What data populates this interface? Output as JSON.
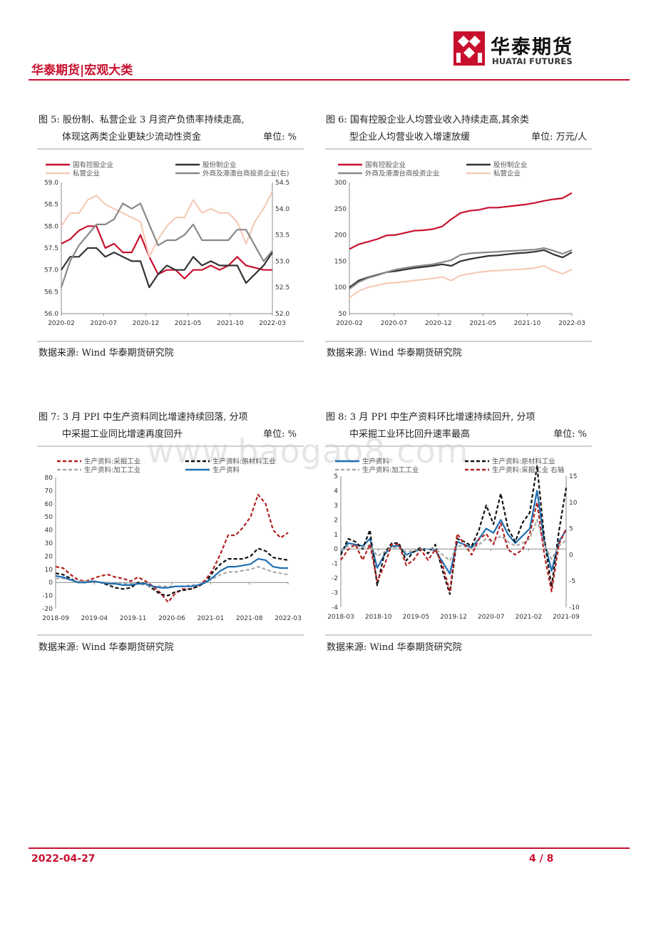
{
  "header": {
    "section_title": "华泰期货|宏观大类",
    "logo_cn": "华泰期货",
    "logo_en": "HUATAI FUTURES",
    "brand_color": "#c8102e"
  },
  "watermark": "www.baogao8.com",
  "footer": {
    "date": "2022-04-27",
    "page": "4 / 8"
  },
  "figures": [
    {
      "caption_line1": "图 5:      股份制、私营企业 3 月资产负债率持续走高,",
      "caption_line2": "体现这两类企业更缺少流动性资金",
      "unit": "单位: %",
      "source": "数据来源: Wind  华泰期货研究院"
    },
    {
      "caption_line1": "图 6:      国有控股企业人均营业收入持续走高,其余类",
      "caption_line2": "型企业人均营业收入增速放缓",
      "unit": "单位: 万元/人",
      "source": "数据来源: Wind  华泰期货研究院"
    },
    {
      "caption_line1": "图 7:      3 月 PPI 中生产资料同比增速持续回落, 分项",
      "caption_line2": "中采掘工业同比增速再度回升",
      "unit": "单位: %",
      "source": "数据来源: Wind  华泰期货研究院"
    },
    {
      "caption_line1": "图 8:      3 月 PPI 中生产资料环比增速持续回升, 分项",
      "caption_line2": "中采掘工业环比回升速率最高",
      "unit": "单位: %",
      "source": "数据来源: Wind  华泰期货研究院"
    }
  ],
  "chart_data": [
    {
      "type": "line",
      "x": [
        "2020-02",
        "2020-03",
        "2020-04",
        "2020-05",
        "2020-06",
        "2020-07",
        "2020-08",
        "2020-09",
        "2020-10",
        "2020-11",
        "2020-12",
        "2021-02",
        "2021-03",
        "2021-04",
        "2021-05",
        "2021-06",
        "2021-07",
        "2021-08",
        "2021-09",
        "2021-10",
        "2021-11",
        "2021-12",
        "2022-01",
        "2022-02",
        "2022-03"
      ],
      "x_ticks": [
        "2020-02",
        "2020-07",
        "2020-12",
        "2021-05",
        "2021-10",
        "2022-03"
      ],
      "ylim": [
        56.0,
        59.0
      ],
      "y_ticks": [
        "56.0",
        "56.5",
        "57.0",
        "57.5",
        "58.0",
        "58.5",
        "59.0"
      ],
      "y2lim": [
        52.0,
        54.5
      ],
      "y2_ticks": [
        "52.0",
        "52.5",
        "53.0",
        "53.5",
        "54.0",
        "54.5"
      ],
      "series": [
        {
          "name": "国有控股企业",
          "axis": "left",
          "color": "#c8102e",
          "values": [
            57.6,
            57.7,
            57.9,
            58.0,
            58.0,
            57.5,
            57.6,
            57.4,
            57.4,
            57.8,
            57.3,
            56.9,
            57.0,
            57.0,
            56.8,
            57.0,
            57.0,
            57.1,
            57.0,
            57.1,
            57.3,
            57.1,
            57.05,
            57.0,
            57.0
          ]
        },
        {
          "name": "股份制企业",
          "axis": "left",
          "color": "#333333",
          "values": [
            57.0,
            57.3,
            57.3,
            57.5,
            57.5,
            57.3,
            57.4,
            57.3,
            57.2,
            57.2,
            56.6,
            56.9,
            57.1,
            57.0,
            57.0,
            57.3,
            57.1,
            57.2,
            57.1,
            57.1,
            57.1,
            56.7,
            56.9,
            57.1,
            57.4
          ]
        },
        {
          "name": "私营企业",
          "axis": "left",
          "color": "#f6cbb8",
          "values": [
            58.0,
            58.3,
            58.3,
            58.6,
            58.7,
            58.5,
            58.4,
            58.3,
            58.2,
            58.1,
            57.3,
            57.7,
            58.0,
            58.2,
            58.2,
            58.6,
            58.3,
            58.4,
            58.3,
            58.3,
            58.1,
            57.6,
            58.1,
            58.4,
            58.8
          ]
        },
        {
          "name": "外商及港澳台商投资企业(右)",
          "axis": "right",
          "color": "#888888",
          "values": [
            52.5,
            53.0,
            53.3,
            53.5,
            53.7,
            53.7,
            53.8,
            54.1,
            54.0,
            54.1,
            53.7,
            53.3,
            53.4,
            53.4,
            53.5,
            53.7,
            53.4,
            53.4,
            53.4,
            53.4,
            53.6,
            53.6,
            53.3,
            53.0,
            53.2
          ]
        }
      ]
    },
    {
      "type": "line",
      "x": [
        "2020-02",
        "2020-03",
        "2020-04",
        "2020-05",
        "2020-06",
        "2020-07",
        "2020-08",
        "2020-09",
        "2020-10",
        "2020-11",
        "2020-12",
        "2021-02",
        "2021-03",
        "2021-04",
        "2021-05",
        "2021-06",
        "2021-07",
        "2021-08",
        "2021-09",
        "2021-10",
        "2021-11",
        "2021-12",
        "2022-01",
        "2022-02",
        "2022-03"
      ],
      "x_ticks": [
        "2020-02",
        "2020-07",
        "2020-12",
        "2021-05",
        "2021-10",
        "2022-03"
      ],
      "ylim": [
        50,
        300
      ],
      "y_ticks": [
        "50",
        "100",
        "150",
        "200",
        "250",
        "300"
      ],
      "series": [
        {
          "name": "国有控股企业",
          "color": "#c8102e",
          "values": [
            173,
            182,
            187,
            192,
            199,
            200,
            204,
            208,
            209,
            211,
            216,
            230,
            242,
            246,
            248,
            252,
            252,
            254,
            256,
            258,
            261,
            265,
            268,
            270,
            280
          ]
        },
        {
          "name": "股份制企业",
          "color": "#333333",
          "values": [
            100,
            113,
            119,
            124,
            129,
            131,
            134,
            137,
            139,
            141,
            144,
            141,
            150,
            154,
            157,
            160,
            161,
            163,
            165,
            166,
            168,
            171,
            163,
            157,
            167
          ]
        },
        {
          "name": "外商及港澳台商投资企业",
          "color": "#888888",
          "values": [
            97,
            110,
            118,
            123,
            129,
            134,
            137,
            140,
            142,
            144,
            148,
            152,
            162,
            165,
            166,
            167,
            168,
            169,
            170,
            171,
            172,
            175,
            170,
            164,
            171
          ]
        },
        {
          "name": "私营企业",
          "color": "#f6cbb8",
          "values": [
            80,
            93,
            100,
            104,
            108,
            109,
            111,
            113,
            115,
            117,
            120,
            113,
            123,
            126,
            129,
            131,
            132,
            133,
            134,
            135,
            137,
            141,
            132,
            126,
            134
          ]
        }
      ]
    },
    {
      "type": "line",
      "x_ticks": [
        "2018-09",
        "2019-04",
        "2019-11",
        "2020-06",
        "2021-01",
        "2021-08",
        "2022-03"
      ],
      "ylim": [
        -20,
        80
      ],
      "y_ticks": [
        "-20",
        "-10",
        "0",
        "10",
        "20",
        "30",
        "40",
        "50",
        "60",
        "70",
        "80"
      ],
      "series": [
        {
          "name": "生产资料:采掘工业",
          "color": "#b22222",
          "dash": true,
          "values": [
            12,
            11,
            6,
            2,
            1,
            3,
            5,
            6,
            4,
            3,
            1,
            4,
            1,
            -3,
            -8,
            -15,
            -8,
            -5,
            -5,
            -3,
            2,
            10,
            22,
            36,
            36,
            42,
            50,
            67,
            60,
            40,
            34,
            38
          ]
        },
        {
          "name": "生产资料:原材料工业",
          "color": "#111111",
          "dash": true,
          "values": [
            7,
            6,
            3,
            0,
            0,
            1,
            0,
            -2,
            -4,
            -5,
            -4,
            0,
            -1,
            -5,
            -9,
            -10,
            -7,
            -6,
            -5,
            -3,
            0,
            8,
            14,
            18,
            18,
            18,
            20,
            26,
            24,
            19,
            18,
            17
          ]
        },
        {
          "name": "生产资料:加工工业",
          "color": "#aaaaaa",
          "dash": true,
          "values": [
            3,
            3,
            2,
            1,
            1,
            1,
            0,
            0,
            -1,
            -1,
            -1,
            -1,
            -2,
            -3,
            -3,
            -3,
            -3,
            -3,
            -2,
            -2,
            0,
            3,
            6,
            8,
            8,
            9,
            10,
            12,
            10,
            8,
            7,
            6
          ]
        },
        {
          "name": "生产资料",
          "color": "#1f6fb2",
          "dash": false,
          "values": [
            5,
            4,
            2,
            0,
            0,
            1,
            0,
            -1,
            -1,
            -2,
            -2,
            -1,
            -1,
            -3,
            -4,
            -4,
            -3,
            -3,
            -3,
            -2,
            0,
            4,
            9,
            12,
            12,
            13,
            14,
            18,
            17,
            12,
            11,
            11
          ]
        }
      ]
    },
    {
      "type": "line",
      "x_ticks": [
        "2018-03",
        "2018-10",
        "2019-05",
        "2019-12",
        "2020-07",
        "2021-02",
        "2021-09"
      ],
      "ylim": [
        -4,
        5
      ],
      "y_ticks": [
        "-4",
        "-3",
        "-2",
        "-1",
        "0",
        "1",
        "2",
        "3",
        "4",
        "5"
      ],
      "y2lim": [
        -10,
        15
      ],
      "y2_ticks": [
        "-10",
        "-5",
        "0",
        "5",
        "10",
        "15"
      ],
      "series": [
        {
          "name": "生产资料",
          "axis": "left",
          "color": "#1f6fb2",
          "dash": false,
          "values": [
            -0.2,
            0.4,
            0.3,
            0.2,
            0.7,
            -1.3,
            -0.4,
            0.2,
            0.2,
            -0.4,
            -0.2,
            0.0,
            0.0,
            -0.1,
            -0.9,
            -1.7,
            0.5,
            0.3,
            0.1,
            0.7,
            1.4,
            1.1,
            2.0,
            1.0,
            0.4,
            0.9,
            1.4,
            4.0,
            0.5,
            -1.5,
            0.5,
            1.3
          ]
        },
        {
          "name": "生产资料:原材料工业",
          "axis": "left",
          "color": "#111111",
          "dash": true,
          "values": [
            -0.4,
            0.7,
            0.5,
            0.0,
            1.3,
            -2.5,
            -0.3,
            0.4,
            0.4,
            -0.8,
            -0.2,
            0.1,
            -0.3,
            0.3,
            -1.5,
            -3.1,
            0.7,
            0.5,
            0.2,
            1.3,
            3.0,
            1.7,
            3.8,
            1.4,
            0.5,
            1.8,
            2.5,
            5.7,
            0.7,
            -2.6,
            1.2,
            4.2
          ]
        },
        {
          "name": "生产资料:加工工业",
          "axis": "left",
          "color": "#aaaaaa",
          "dash": true,
          "values": [
            -0.1,
            0.2,
            0.2,
            0.1,
            0.3,
            -0.5,
            -0.2,
            0.1,
            0.1,
            -0.2,
            -0.1,
            0.0,
            0.0,
            0.0,
            -0.4,
            -0.8,
            0.2,
            0.2,
            0.0,
            0.3,
            0.7,
            0.5,
            0.9,
            0.5,
            0.2,
            0.4,
            0.7,
            2.0,
            0.3,
            -0.7,
            0.2,
            0.6
          ]
        },
        {
          "name": "生产资料:采掘工业 右轴",
          "axis": "right",
          "color": "#b22222",
          "dash": true,
          "values": [
            -1,
            1,
            2,
            -1,
            2,
            -5,
            -2,
            2,
            2,
            -2,
            -1,
            1,
            -1,
            1,
            -2,
            -7,
            4,
            2,
            0,
            3,
            4,
            2,
            6,
            1,
            0,
            1,
            4,
            10,
            0,
            -7,
            2,
            5
          ]
        }
      ]
    }
  ]
}
